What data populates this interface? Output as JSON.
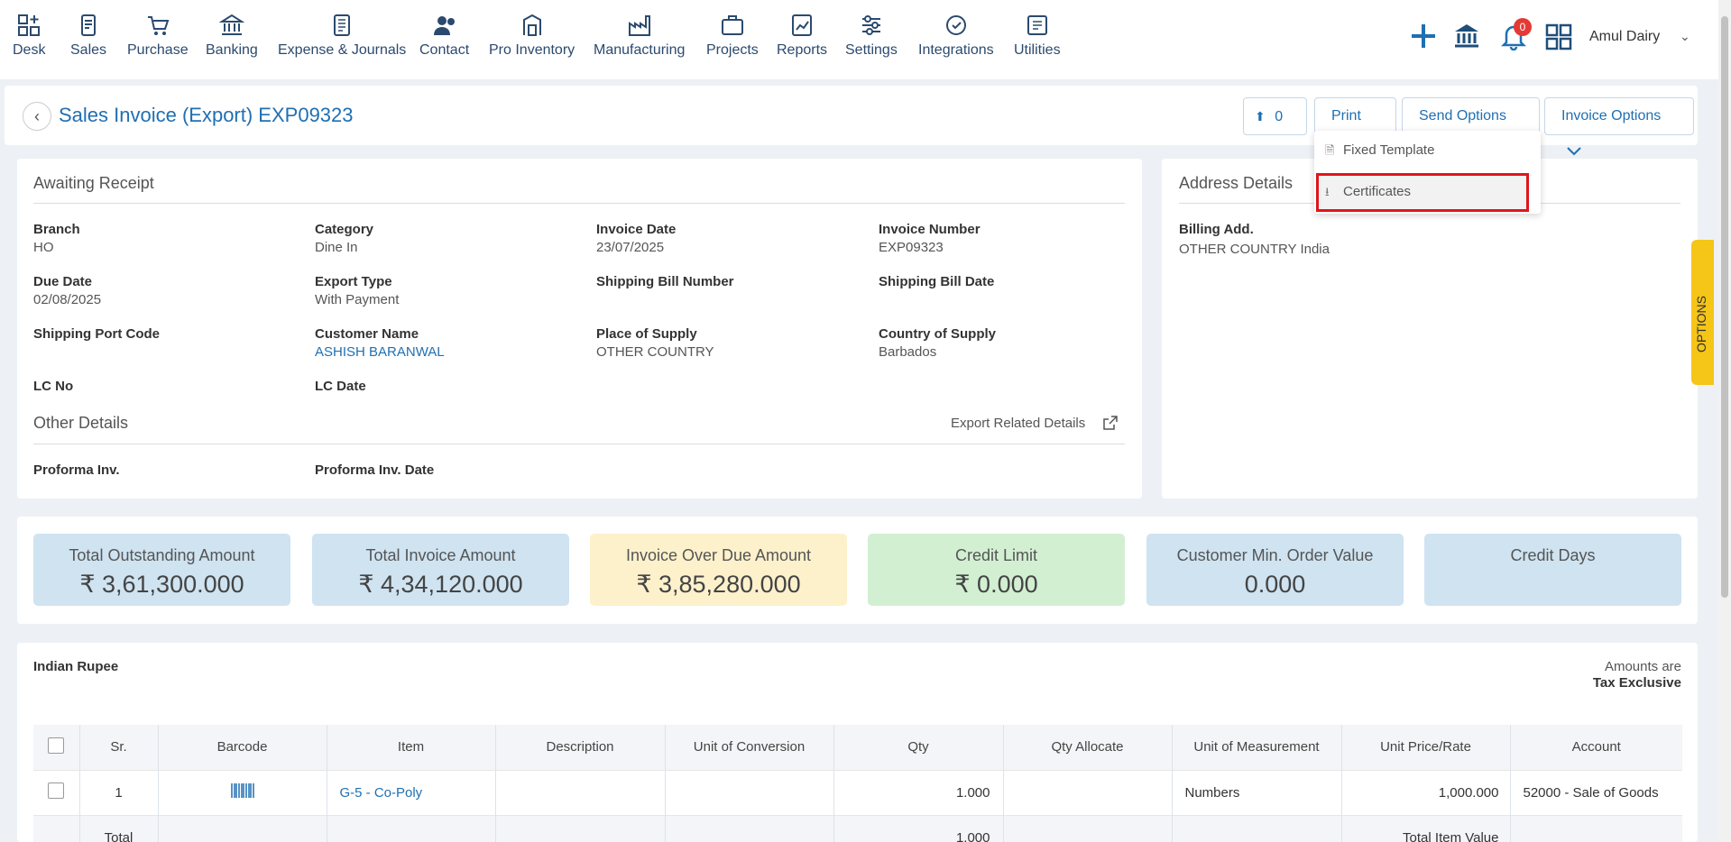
{
  "nav": {
    "items": [
      {
        "label": "Desk",
        "icon": "desk-icon"
      },
      {
        "label": "Sales",
        "icon": "sales-icon"
      },
      {
        "label": "Purchase",
        "icon": "cart-icon"
      },
      {
        "label": "Banking",
        "icon": "bank-icon"
      },
      {
        "label": "Expense & Journals",
        "icon": "journal-icon"
      },
      {
        "label": "Contact",
        "icon": "contact-icon"
      },
      {
        "label": "Pro Inventory",
        "icon": "inventory-icon"
      },
      {
        "label": "Manufacturing",
        "icon": "factory-icon"
      },
      {
        "label": "Projects",
        "icon": "projects-icon"
      },
      {
        "label": "Reports",
        "icon": "reports-icon"
      },
      {
        "label": "Settings",
        "icon": "settings-icon"
      },
      {
        "label": "Integrations",
        "icon": "integrations-icon"
      },
      {
        "label": "Utilities",
        "icon": "utilities-icon"
      }
    ],
    "notification_count": "0",
    "user": "Amul Dairy"
  },
  "header": {
    "title": "Sales Invoice (Export) EXP09323",
    "upload_count": "0",
    "print_label": "Print",
    "send_options_label": "Send Options",
    "invoice_options_label": "Invoice Options"
  },
  "print_menu": {
    "items": [
      "Fixed Template",
      "Certificates"
    ]
  },
  "details": {
    "status": "Awaiting Receipt",
    "fields": {
      "branch": {
        "label": "Branch",
        "value": "HO"
      },
      "category": {
        "label": "Category",
        "value": "Dine In"
      },
      "invoice_date": {
        "label": "Invoice Date",
        "value": "23/07/2025"
      },
      "invoice_number": {
        "label": "Invoice Number",
        "value": "EXP09323"
      },
      "due_date": {
        "label": "Due Date",
        "value": "02/08/2025"
      },
      "export_type": {
        "label": "Export Type",
        "value": "With Payment"
      },
      "shipping_bill_number": {
        "label": "Shipping Bill Number",
        "value": ""
      },
      "shipping_bill_date": {
        "label": "Shipping Bill Date",
        "value": ""
      },
      "shipping_port_code": {
        "label": "Shipping Port Code",
        "value": ""
      },
      "customer_name": {
        "label": "Customer Name",
        "value": "ASHISH BARANWAL"
      },
      "place_of_supply": {
        "label": "Place of Supply",
        "value": "OTHER COUNTRY"
      },
      "country_of_supply": {
        "label": "Country of Supply",
        "value": "Barbados"
      },
      "lc_no": {
        "label": "LC No",
        "value": ""
      },
      "lc_date": {
        "label": "LC Date",
        "value": ""
      }
    },
    "other_details_title": "Other Details",
    "export_related_label": "Export Related Details",
    "proforma_inv": "Proforma Inv.",
    "proforma_inv_date": "Proforma Inv. Date"
  },
  "address": {
    "title": "Address Details",
    "billing_label": "Billing Add.",
    "billing_value": "OTHER COUNTRY India"
  },
  "options_tab": "OPTIONS",
  "stats": [
    {
      "title": "Total Outstanding Amount",
      "value": "₹ 3,61,300.000",
      "color": "#cfe3f1"
    },
    {
      "title": "Total Invoice Amount",
      "value": "₹ 4,34,120.000",
      "color": "#cfe3f1"
    },
    {
      "title": "Invoice Over Due Amount",
      "value": "₹ 3,85,280.000",
      "color": "#fdf1cc"
    },
    {
      "title": "Credit Limit",
      "value": "₹ 0.000",
      "color": "#d2efd2"
    },
    {
      "title": "Customer Min. Order Value",
      "value": "0.000",
      "color": "#cfe3f1"
    },
    {
      "title": "Credit Days",
      "value": "",
      "color": "#cfe3f1"
    }
  ],
  "items_section": {
    "currency": "Indian Rupee",
    "amounts_are": "Amounts are",
    "tax_mode": "Tax Exclusive",
    "columns": [
      "Sr.",
      "Barcode",
      "Item",
      "Description",
      "Unit of Conversion",
      "Qty",
      "Qty Allocate",
      "Unit of Measurement",
      "Unit Price/Rate",
      "Account"
    ],
    "rows": [
      {
        "sr": "1",
        "item": "G-5 - Co-Poly",
        "description": "",
        "unit_conversion": "",
        "qty": "1.000",
        "qty_allocate": "",
        "uom": "Numbers",
        "rate": "1,000.000",
        "account": "52000 - Sale of Goods"
      }
    ],
    "total_label": "Total",
    "total_qty": "1.000",
    "total_item_value_label": "Total Item Value"
  }
}
